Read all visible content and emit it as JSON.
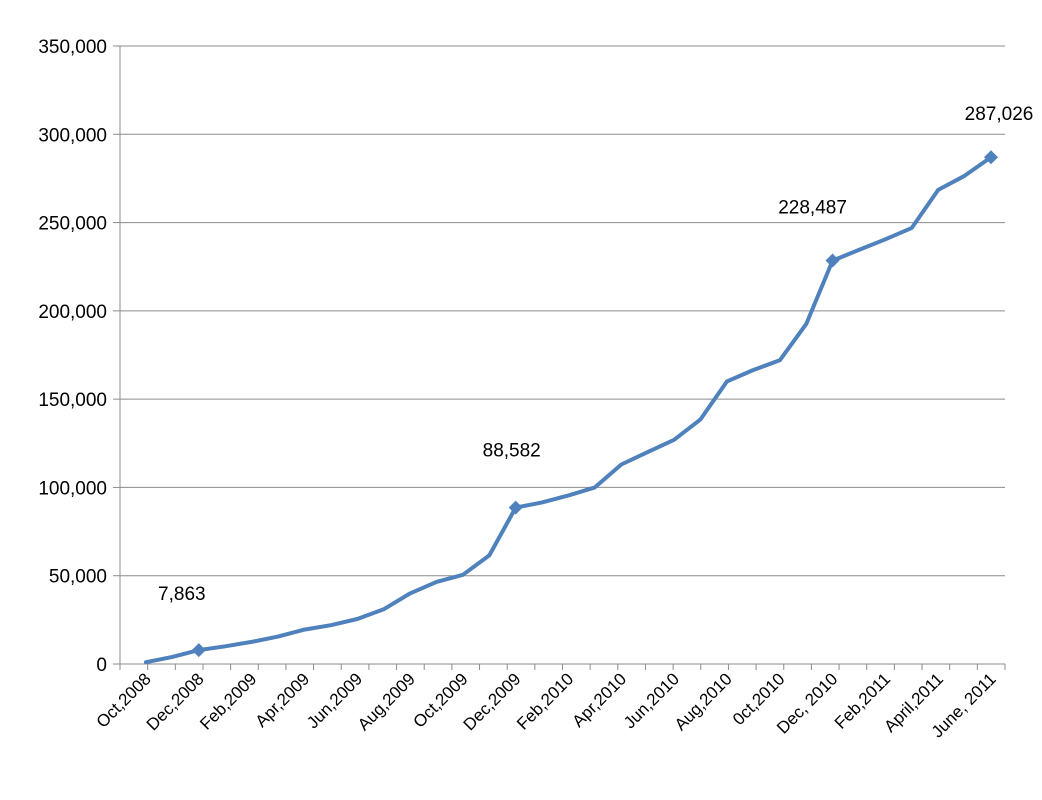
{
  "chart_data": {
    "type": "line",
    "title": "",
    "xlabel": "",
    "ylabel": "",
    "ylim": [
      0,
      350000
    ],
    "y_ticks": [
      0,
      50000,
      100000,
      150000,
      200000,
      250000,
      300000,
      350000
    ],
    "y_tick_labels": [
      "0",
      "50,000",
      "100,000",
      "150,000",
      "200,000",
      "250,000",
      "300,000",
      "350,000"
    ],
    "grid": true,
    "legend": "none",
    "line_color": "#4f81bd",
    "x_tick_labels": [
      "Oct,2008",
      "Dec,2008",
      "Feb,2009",
      "Apr,2009",
      "Jun,2009",
      "Aug,2009",
      "Oct,2009",
      "Dec,2009",
      "Feb,2010",
      "Apr,2010",
      "Jun,2010",
      "Aug,2010",
      "0ct,2010",
      "Dec, 2010",
      "Feb,2011",
      "April,2011",
      "June, 2011"
    ],
    "series": [
      {
        "values": [
          1000,
          4000,
          7863,
          10000,
          12500,
          15500,
          19500,
          22000,
          25500,
          31000,
          40000,
          46500,
          50500,
          61500,
          88582,
          91500,
          95500,
          100000,
          113000,
          120000,
          127000,
          138500,
          160000,
          166500,
          172000,
          192500,
          228487,
          234500,
          240500,
          247000,
          268500,
          276500,
          287026
        ],
        "labeled_points": [
          {
            "index": 2,
            "label": "7,863"
          },
          {
            "index": 14,
            "label": "88,582"
          },
          {
            "index": 26,
            "label": "228,487"
          },
          {
            "index": 32,
            "label": "287,026"
          }
        ]
      }
    ]
  }
}
